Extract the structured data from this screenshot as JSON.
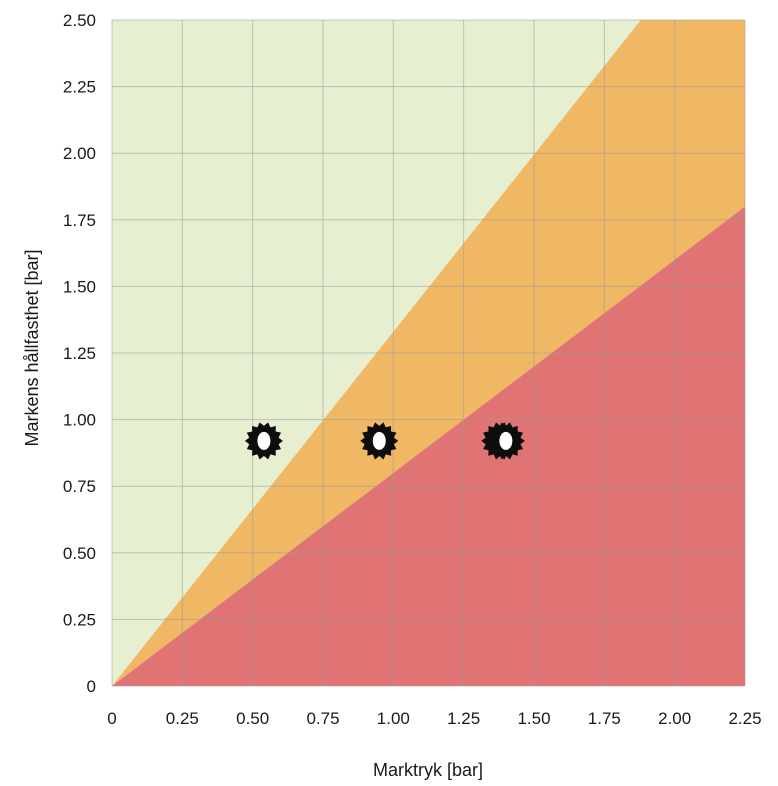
{
  "chart_data": {
    "type": "scatter",
    "title": "",
    "xlabel": "Marktryk [bar]",
    "ylabel": "Markens hållfasthet [bar]",
    "xlim": [
      0,
      2.25
    ],
    "ylim": [
      0,
      2.5
    ],
    "x_ticks": [
      "0",
      "0.25",
      "0.50",
      "0.75",
      "1.00",
      "1.25",
      "1.50",
      "1.75",
      "2.00",
      "2.25"
    ],
    "y_ticks": [
      "0",
      "0.25",
      "0.50",
      "0.75",
      "1.00",
      "1.25",
      "1.50",
      "1.75",
      "2.00",
      "2.25",
      "2.50"
    ],
    "grid": true,
    "regions": [
      {
        "zone": "safe",
        "color": "#e6f0d0",
        "description_boundary": "above y = 1.33x"
      },
      {
        "zone": "caution",
        "color": "#f0b765",
        "boundary_lower": "y = 0.8x",
        "boundary_upper": "y = 1.33x"
      },
      {
        "zone": "risk",
        "color": "#e07474",
        "description_boundary": "below y = 0.8x"
      }
    ],
    "points": [
      {
        "x": 0.54,
        "y": 0.92,
        "shape": "gear-ring"
      },
      {
        "x": 0.95,
        "y": 0.92,
        "shape": "gear-ring"
      },
      {
        "x": 1.38,
        "y": 0.92,
        "shape": "gear-ring"
      },
      {
        "x": 1.4,
        "y": 0.92,
        "shape": "gear-ring"
      }
    ]
  }
}
